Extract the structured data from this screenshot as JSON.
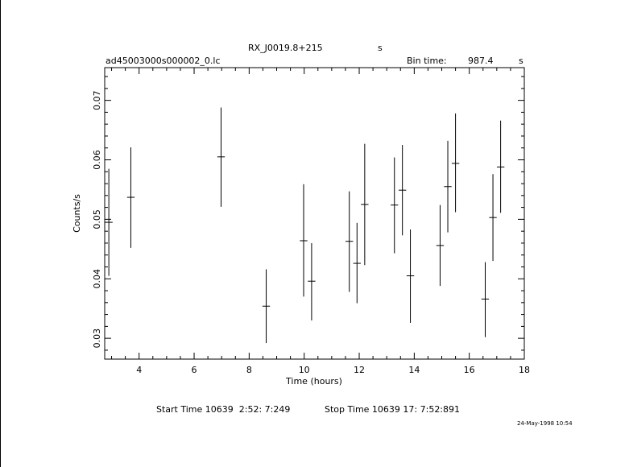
{
  "header": {
    "object_name": "RX_J0019.8+215",
    "object_suffix": "s",
    "file_name": "ad45003000s000002_0.lc",
    "bin_label": "Bin time:",
    "bin_value": "987.4",
    "bin_unit": "s"
  },
  "footer": {
    "start_label": "Start Time 10639  2:52: 7:249",
    "stop_label": "Stop Time 10639 17: 7:52:891",
    "date_stamp": "24-May-1998 10:54"
  },
  "chart_data": {
    "type": "scatter",
    "xlabel": "Time (hours)",
    "ylabel": "Counts/s",
    "xlim": [
      2.75,
      18.0
    ],
    "ylim": [
      0.0265,
      0.0755
    ],
    "xticks": [
      4,
      6,
      8,
      10,
      12,
      14,
      16,
      18
    ],
    "yticks": [
      0.03,
      0.04,
      0.05,
      0.06,
      0.07
    ],
    "xtick_labels": [
      "4",
      "6",
      "8",
      "10",
      "12",
      "14",
      "16",
      "18"
    ],
    "ytick_labels": [
      "0.03",
      "0.04",
      "0.05",
      "0.06",
      "0.07"
    ],
    "grid": false,
    "points": [
      {
        "x": 2.9,
        "y": 0.0495,
        "ylo": 0.0405,
        "yhi": 0.0585
      },
      {
        "x": 3.7,
        "y": 0.0537,
        "ylo": 0.0452,
        "yhi": 0.0621
      },
      {
        "x": 6.98,
        "y": 0.0605,
        "ylo": 0.0521,
        "yhi": 0.0688
      },
      {
        "x": 8.62,
        "y": 0.0354,
        "ylo": 0.0292,
        "yhi": 0.0416
      },
      {
        "x": 9.98,
        "y": 0.0464,
        "ylo": 0.037,
        "yhi": 0.0559
      },
      {
        "x": 10.27,
        "y": 0.0396,
        "ylo": 0.033,
        "yhi": 0.046
      },
      {
        "x": 11.64,
        "y": 0.0463,
        "ylo": 0.0378,
        "yhi": 0.0547
      },
      {
        "x": 11.92,
        "y": 0.0426,
        "ylo": 0.0359,
        "yhi": 0.0494
      },
      {
        "x": 12.2,
        "y": 0.0525,
        "ylo": 0.0423,
        "yhi": 0.0627
      },
      {
        "x": 13.28,
        "y": 0.0524,
        "ylo": 0.0443,
        "yhi": 0.0604
      },
      {
        "x": 13.57,
        "y": 0.0549,
        "ylo": 0.0473,
        "yhi": 0.0625
      },
      {
        "x": 13.86,
        "y": 0.0405,
        "ylo": 0.0326,
        "yhi": 0.0483
      },
      {
        "x": 14.94,
        "y": 0.0456,
        "ylo": 0.0388,
        "yhi": 0.0524
      },
      {
        "x": 15.22,
        "y": 0.0555,
        "ylo": 0.0478,
        "yhi": 0.0632
      },
      {
        "x": 15.5,
        "y": 0.0594,
        "ylo": 0.0512,
        "yhi": 0.0678
      },
      {
        "x": 16.58,
        "y": 0.0366,
        "ylo": 0.0302,
        "yhi": 0.0428
      },
      {
        "x": 16.86,
        "y": 0.0503,
        "ylo": 0.043,
        "yhi": 0.0576
      },
      {
        "x": 17.14,
        "y": 0.0588,
        "ylo": 0.0511,
        "yhi": 0.0666
      }
    ]
  }
}
